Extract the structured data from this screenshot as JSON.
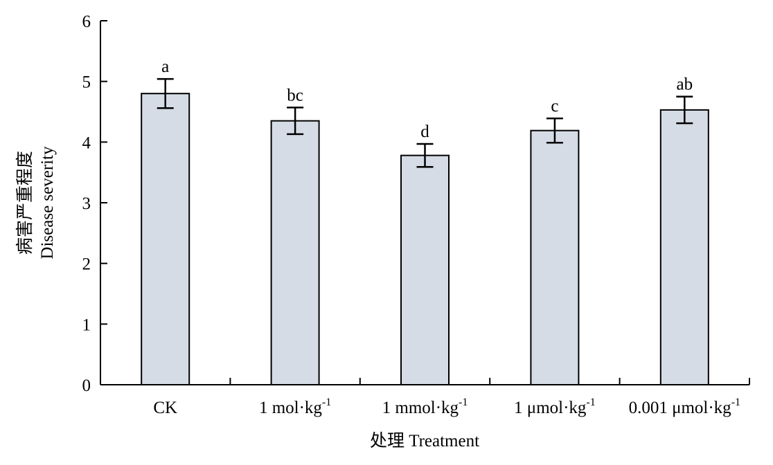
{
  "chart_data": {
    "type": "bar",
    "xlabel": "处理 Treatment",
    "ylabel_lines": [
      "病害严重程度",
      "Disease severity"
    ],
    "ylim": [
      0,
      6
    ],
    "yticks": [
      0,
      1,
      2,
      3,
      4,
      5,
      6
    ],
    "grid": false,
    "bar_color": "#d6dce5",
    "categories": [
      {
        "base": "CK",
        "sup": ""
      },
      {
        "base": "1 mol·kg",
        "sup": "-1"
      },
      {
        "base": "1 mmol·kg",
        "sup": "-1"
      },
      {
        "base": "1 μmol·kg",
        "sup": "-1"
      },
      {
        "base": "0.001 μmol·kg",
        "sup": "-1"
      }
    ],
    "values": [
      4.8,
      4.35,
      3.78,
      4.19,
      4.53
    ],
    "error": [
      0.24,
      0.22,
      0.19,
      0.2,
      0.22
    ],
    "significance": [
      "a",
      "bc",
      "d",
      "c",
      "ab"
    ]
  }
}
